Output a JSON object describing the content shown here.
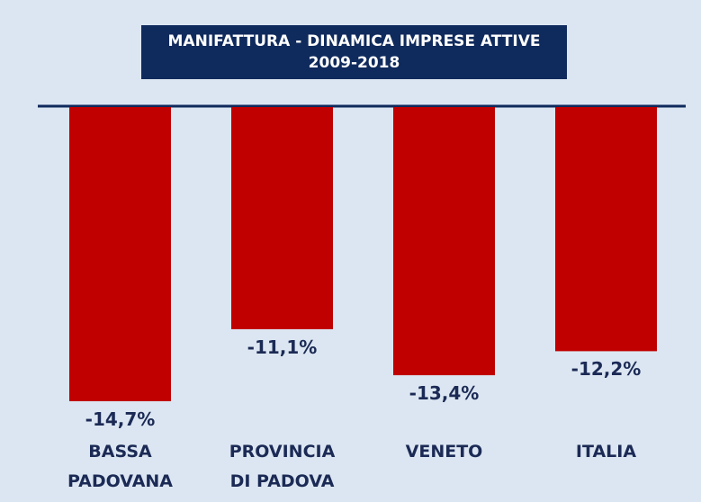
{
  "chart_data": {
    "type": "bar",
    "title": "MANIFATTURA - DINAMICA IMPRESE ATTIVE\n2009-2018",
    "categories": [
      "BASSA\nPADOVANA",
      "PROVINCIA\nDI PADOVA",
      "VENETO",
      "ITALIA"
    ],
    "values": [
      -14.7,
      -11.1,
      -13.4,
      -12.2
    ],
    "value_labels": [
      "-14,7%",
      "-11,1%",
      "-13,4%",
      "-12,2%"
    ],
    "color": "#c00000"
  }
}
